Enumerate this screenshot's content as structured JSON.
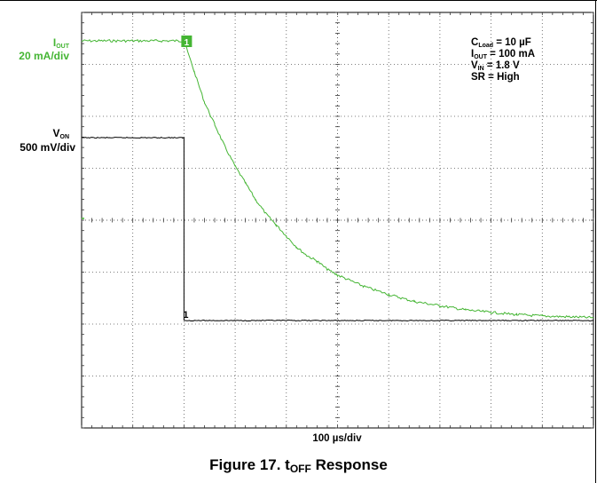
{
  "figure": {
    "caption_prefix": "Figure 17. t",
    "caption_sub": "OFF",
    "caption_suffix": " Response"
  },
  "channels": {
    "iout": {
      "symbol": "I",
      "sub": "OUT",
      "scale": "20 mA/div",
      "marker": "1",
      "color": "#44b533"
    },
    "von": {
      "symbol": "V",
      "sub": "ON",
      "scale": "500 mV/div",
      "marker": "1",
      "color": "#000000"
    }
  },
  "conditions": [
    {
      "sym": "C",
      "sub": "Load",
      "rest": " = 10 µF"
    },
    {
      "sym": "I",
      "sub": "OUT",
      "rest": " = 100 mA"
    },
    {
      "sym": "V",
      "sub": "IN",
      "rest": " = 1.8 V"
    },
    {
      "sym": "SR",
      "sub": "",
      "rest": " = High"
    }
  ],
  "timebase": "100 µs/div",
  "chart_data": {
    "type": "line",
    "grid": true,
    "x_divisions": 10,
    "y_divisions": 8,
    "x_unit": "µs",
    "x_range": [
      0,
      1000
    ],
    "series": [
      {
        "name": "I_OUT",
        "unit": "mA",
        "points": [
          [
            0,
            100
          ],
          [
            190,
            100
          ],
          [
            200,
            100
          ],
          [
            220,
            89
          ],
          [
            240,
            78
          ],
          [
            260,
            70
          ],
          [
            280,
            62
          ],
          [
            300,
            55
          ],
          [
            320,
            49
          ],
          [
            340,
            43
          ],
          [
            360,
            38
          ],
          [
            380,
            34
          ],
          [
            400,
            30
          ],
          [
            420,
            26
          ],
          [
            440,
            23
          ],
          [
            460,
            21
          ],
          [
            480,
            18
          ],
          [
            500,
            16
          ],
          [
            550,
            12
          ],
          [
            600,
            9
          ],
          [
            650,
            6.5
          ],
          [
            700,
            5
          ],
          [
            750,
            3.5
          ],
          [
            800,
            2.6
          ],
          [
            850,
            1.8
          ],
          [
            900,
            1.3
          ],
          [
            950,
            1
          ],
          [
            1000,
            0.7
          ]
        ]
      },
      {
        "name": "V_ON",
        "unit": "V",
        "points": [
          [
            0,
            1.8
          ],
          [
            197,
            1.8
          ],
          [
            200,
            1.8
          ],
          [
            200,
            0
          ],
          [
            1000,
            0
          ]
        ]
      }
    ]
  }
}
